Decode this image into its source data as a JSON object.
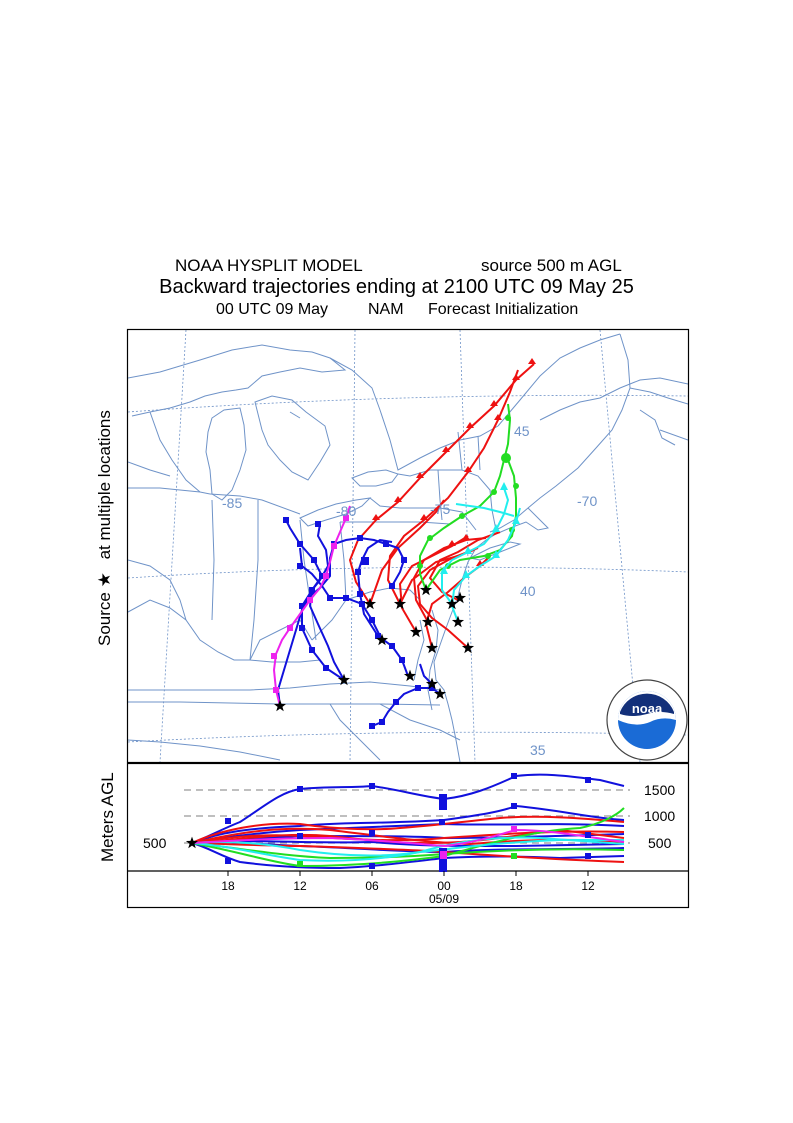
{
  "header": {
    "model": "NOAA HYSPLIT MODEL",
    "source_height": "source 500 m AGL",
    "title": "Backward trajectories ending at 2100 UTC 09 May 25",
    "init_time": "00 UTC 09 May",
    "met_model": "NAM",
    "forecast_label": "Forecast Initialization"
  },
  "map": {
    "y_axis_label_source": "Source",
    "y_axis_label_locations": "at multiple locations",
    "longitude_labels": [
      "-85",
      "-80",
      "-75",
      "-70"
    ],
    "latitude_labels": [
      "45",
      "40",
      "35"
    ],
    "logo_text": "noaa"
  },
  "height_panel": {
    "ylabel": "Meters AGL",
    "start_level": "500",
    "levels": [
      "1500",
      "1000",
      "500"
    ],
    "time_ticks": [
      "18",
      "12",
      "06",
      "00",
      "18",
      "12"
    ],
    "date_label": "05/09"
  },
  "colors": {
    "red": "#ee1111",
    "blue": "#1111dd",
    "green": "#22dd22",
    "cyan": "#22eeee",
    "magenta": "#ee22ee",
    "map_lines": "#6f93c8"
  }
}
